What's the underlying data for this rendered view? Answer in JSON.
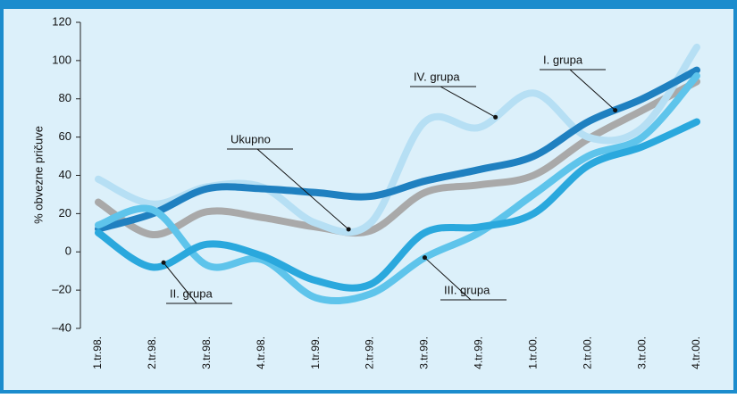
{
  "chart_data": {
    "type": "line",
    "y_label": "% obvezne pričuve",
    "categories": [
      "1.tr.98.",
      "2.tr.98.",
      "3.tr.98.",
      "4.tr.98.",
      "1.tr.99.",
      "2.tr.99.",
      "3.tr.99.",
      "4.tr.99.",
      "1.tr.00.",
      "2.tr.00.",
      "3.tr.00.",
      "4.tr.00."
    ],
    "series": [
      {
        "name": "I. grupa",
        "color": "#1f80c0",
        "values": [
          12,
          20,
          33,
          33,
          31,
          29,
          37,
          43,
          50,
          68,
          80,
          95
        ]
      },
      {
        "name": "II. grupa",
        "color": "#2aa8dd",
        "values": [
          10,
          -8,
          4,
          -2,
          -15,
          -17,
          10,
          13,
          20,
          45,
          55,
          68
        ]
      },
      {
        "name": "III. grupa",
        "color": "#5ec4eb",
        "values": [
          14,
          22,
          -7,
          -4,
          -24,
          -22,
          -3,
          10,
          30,
          50,
          60,
          92
        ]
      },
      {
        "name": "IV. grupa",
        "color": "#b6dff4",
        "values": [
          38,
          25,
          34,
          34,
          15,
          15,
          68,
          65,
          83,
          60,
          65,
          107
        ]
      },
      {
        "name": "Ukupno",
        "color": "#a9a9a9",
        "values": [
          26,
          9,
          21,
          18,
          13,
          11,
          31,
          35,
          40,
          59,
          74,
          89
        ]
      }
    ],
    "ylim": [
      -40,
      120
    ],
    "yticks": [
      {
        "value": -40,
        "label": "–40"
      },
      {
        "value": -20,
        "label": "–20"
      },
      0,
      20,
      40,
      60,
      80,
      100,
      120
    ],
    "grid": false
  }
}
